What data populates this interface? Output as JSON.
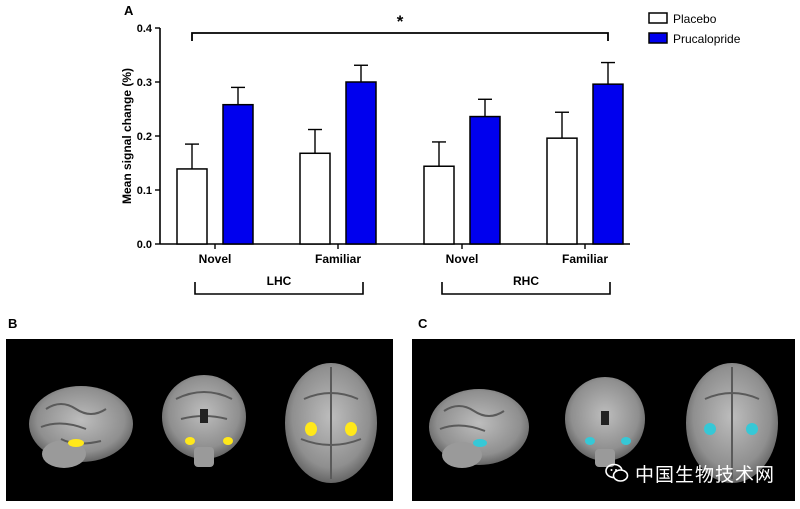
{
  "panels": {
    "a_label": "A",
    "b_label": "B",
    "c_label": "C"
  },
  "watermark": {
    "text": "中国生物技术网",
    "icon": "wechat-icon"
  },
  "chart_data": {
    "type": "bar",
    "ylabel": "Mean signal change (%)",
    "ylim": [
      0,
      0.4
    ],
    "yticks": [
      "0.0",
      "0.1",
      "0.2",
      "0.3",
      "0.4"
    ],
    "categories": [
      "Novel",
      "Familiar",
      "Novel",
      "Familiar"
    ],
    "groups": [
      {
        "label": "LHC",
        "categories": [
          0,
          1
        ]
      },
      {
        "label": "RHC",
        "categories": [
          2,
          3
        ]
      }
    ],
    "series": [
      {
        "name": "Placebo",
        "fill": "#ffffff",
        "stroke": "#000000",
        "values": [
          0.139,
          0.168,
          0.144,
          0.196
        ],
        "errors": [
          0.046,
          0.044,
          0.045,
          0.048
        ]
      },
      {
        "name": "Prucalopride",
        "fill": "#0000ee",
        "stroke": "#000000",
        "values": [
          0.258,
          0.3,
          0.236,
          0.296
        ],
        "errors": [
          0.032,
          0.031,
          0.032,
          0.04
        ]
      }
    ],
    "significance": {
      "label": "*",
      "from_category": 0,
      "to_category": 3
    },
    "legend_position": "top-right",
    "grid": false
  },
  "colors": {
    "roi_b": "#ffe81a",
    "roi_c": "#36c8d6"
  }
}
